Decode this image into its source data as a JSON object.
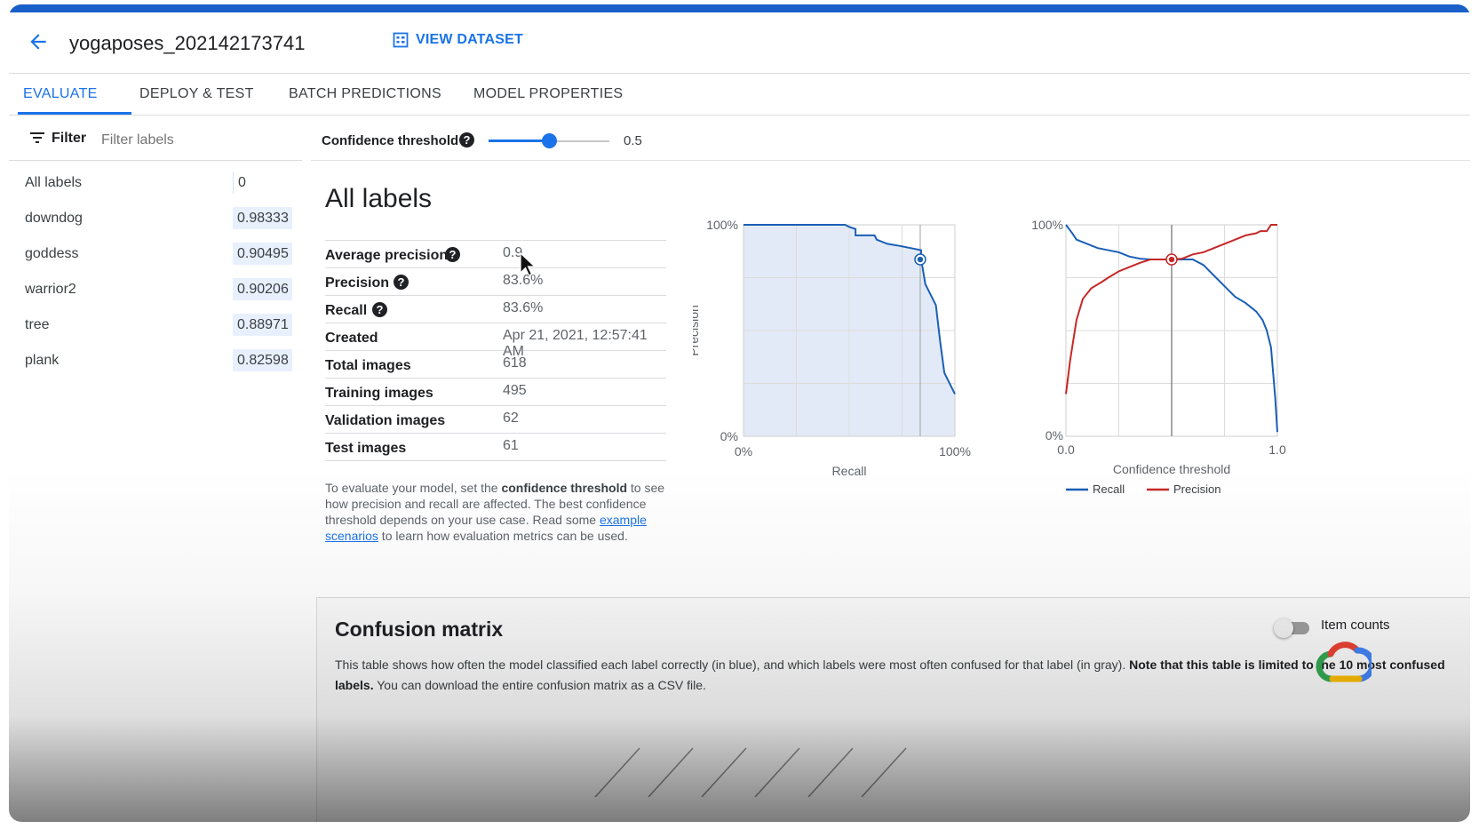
{
  "header": {
    "back_icon": "arrow-back-icon",
    "title": "yogaposes_202142173741",
    "view_dataset_label": "VIEW DATASET",
    "view_dataset_icon": "table-grid-icon"
  },
  "tabs": [
    {
      "label": "EVALUATE",
      "active": true
    },
    {
      "label": "DEPLOY & TEST",
      "active": false
    },
    {
      "label": "BATCH PREDICTIONS",
      "active": false
    },
    {
      "label": "MODEL PROPERTIES",
      "active": false
    }
  ],
  "filter": {
    "label": "Filter",
    "placeholder": "Filter labels",
    "icon": "filter-list-icon"
  },
  "labels": [
    {
      "name": "All labels",
      "score": "0"
    },
    {
      "name": "downdog",
      "score": "0.98333"
    },
    {
      "name": "goddess",
      "score": "0.90495"
    },
    {
      "name": "warrior2",
      "score": "0.90206"
    },
    {
      "name": "tree",
      "score": "0.88971"
    },
    {
      "name": "plank",
      "score": "0.82598"
    }
  ],
  "threshold": {
    "label": "Confidence threshold",
    "value_text": "0.5",
    "value": 0.5
  },
  "main": {
    "heading": "All labels",
    "metrics": [
      {
        "name": "Average precision",
        "value": "0.9",
        "help": true
      },
      {
        "name": "Precision",
        "value": "83.6%",
        "help": true
      },
      {
        "name": "Recall",
        "value": "83.6%",
        "help": true
      },
      {
        "name": "Created",
        "value": "Apr 21, 2021, 12:57:41 AM",
        "help": false
      },
      {
        "name": "Total images",
        "value": "618",
        "help": false
      },
      {
        "name": "Training images",
        "value": "495",
        "help": false
      },
      {
        "name": "Validation images",
        "value": "62",
        "help": false
      },
      {
        "name": "Test images",
        "value": "61",
        "help": false
      }
    ],
    "description": {
      "part1": "To evaluate your model, set the ",
      "bold": "confidence threshold",
      "part2": " to see how precision and recall are affected. The best confidence threshold depends on your use case. Read some ",
      "link": "example scenarios",
      "part3": " to learn how evaluation metrics can be used."
    }
  },
  "colors": {
    "accent": "#1a73e8",
    "recall_line": "#1a5fb4",
    "precision_line": "#c62828",
    "pr_fill": "#e3eaf7"
  },
  "chart_data": [
    {
      "type": "area",
      "xlabel": "Recall",
      "ylabel": "Precision",
      "x_ticks": [
        "0%",
        "100%"
      ],
      "y_ticks": [
        "0%",
        "100%"
      ],
      "xlim": [
        0,
        1
      ],
      "ylim": [
        0,
        1
      ],
      "grid": true,
      "series": [
        {
          "x": [
            0,
            0.48,
            0.5,
            0.53,
            0.53,
            0.62,
            0.63,
            0.68,
            0.74,
            0.84,
            0.84,
            0.85,
            0.86,
            0.88,
            0.91,
            0.93,
            0.95,
            1.0
          ],
          "y": [
            1,
            1,
            0.99,
            0.98,
            0.95,
            0.95,
            0.93,
            0.91,
            0.9,
            0.88,
            0.84,
            0.78,
            0.72,
            0.68,
            0.62,
            0.45,
            0.3,
            0.2
          ]
        }
      ],
      "marker": {
        "x": 0.836,
        "y": 0.836
      }
    },
    {
      "type": "line",
      "xlabel": "Confidence threshold",
      "x_ticks": [
        "0.0",
        "1.0"
      ],
      "y_ticks": [
        "0%",
        "100%"
      ],
      "xlim": [
        0,
        1
      ],
      "ylim": [
        0,
        1
      ],
      "grid": true,
      "legend_position": "bottom",
      "series": [
        {
          "name": "Recall",
          "x": [
            0,
            0.03,
            0.05,
            0.1,
            0.15,
            0.2,
            0.25,
            0.3,
            0.35,
            0.4,
            0.5,
            0.6,
            0.65,
            0.7,
            0.75,
            0.8,
            0.85,
            0.9,
            0.93,
            0.95,
            0.97,
            0.98,
            0.99,
            1.0
          ],
          "y": [
            1,
            0.96,
            0.93,
            0.91,
            0.89,
            0.88,
            0.87,
            0.85,
            0.84,
            0.836,
            0.836,
            0.836,
            0.81,
            0.76,
            0.71,
            0.66,
            0.63,
            0.59,
            0.55,
            0.5,
            0.42,
            0.3,
            0.18,
            0.02
          ]
        },
        {
          "name": "Precision",
          "x": [
            0,
            0.02,
            0.05,
            0.08,
            0.12,
            0.17,
            0.2,
            0.25,
            0.3,
            0.35,
            0.4,
            0.5,
            0.55,
            0.6,
            0.65,
            0.7,
            0.75,
            0.8,
            0.85,
            0.9,
            0.92,
            0.95,
            0.97,
            1.0
          ],
          "y": [
            0.2,
            0.36,
            0.55,
            0.65,
            0.7,
            0.73,
            0.75,
            0.78,
            0.8,
            0.82,
            0.836,
            0.836,
            0.84,
            0.86,
            0.87,
            0.89,
            0.91,
            0.93,
            0.95,
            0.96,
            0.97,
            0.97,
            1.0,
            1.0
          ]
        }
      ],
      "marker": {
        "x": 0.5,
        "y": 0.836
      }
    }
  ],
  "confusion": {
    "title": "Confusion matrix",
    "toggle_label": "Item counts",
    "toggle_on": false,
    "desc_part1": "This table shows how often the model classified each label correctly (in blue), and which labels were most often confused for that label (in gray). ",
    "desc_bold1": "Note that this table is limited to the 10 most confused labels.",
    "desc_part2": " You can download the entire confusion matrix as a CSV file."
  },
  "overlay": {
    "logo": "google-cloud-logo",
    "cursor": "mouse-pointer-icon"
  }
}
